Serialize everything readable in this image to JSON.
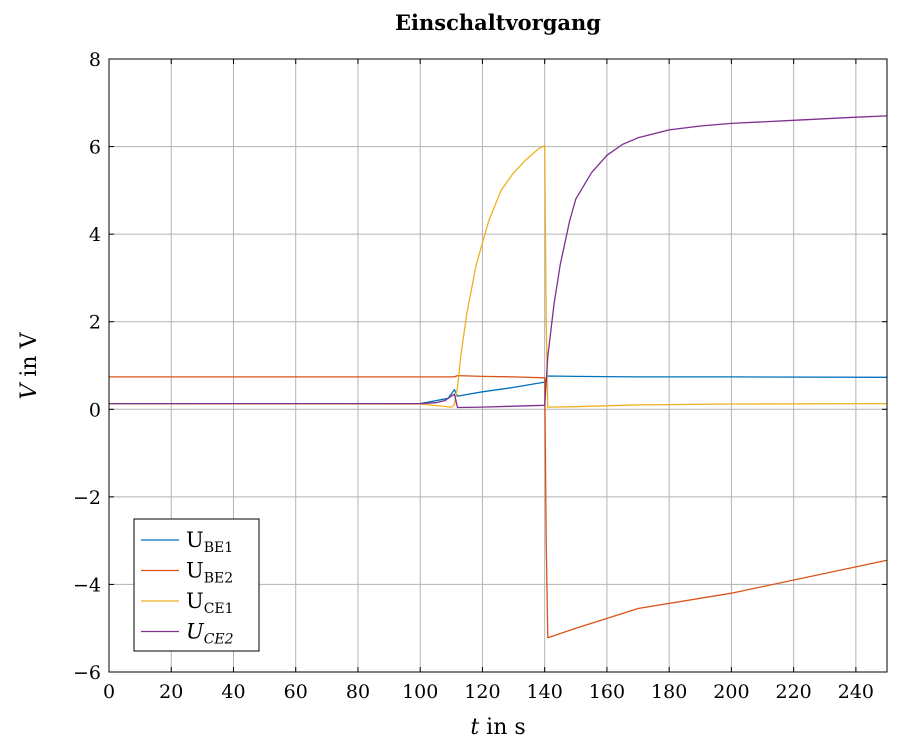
{
  "chart_data": {
    "type": "line",
    "title": "Einschaltvorgang",
    "xlabel": {
      "var": "t",
      "rest": " in s"
    },
    "ylabel": {
      "var": "V",
      "rest": " in V"
    },
    "xlim": [
      0,
      250
    ],
    "ylim": [
      -6,
      8
    ],
    "xticks": [
      0,
      20,
      40,
      60,
      80,
      100,
      120,
      140,
      160,
      180,
      200,
      220,
      240
    ],
    "yticks": [
      -6,
      -4,
      -2,
      0,
      2,
      4,
      6,
      8
    ],
    "ytick_labels": [
      "−6",
      "−4",
      "−2",
      "0",
      "2",
      "4",
      "6",
      "8"
    ],
    "grid": true,
    "legend_position": "bottom-left",
    "series": [
      {
        "name": "U",
        "sub": "BE1",
        "italic": false,
        "color": "#0072BD",
        "x": [
          0,
          100,
          109,
          111,
          112,
          120,
          130,
          140,
          141,
          150,
          170,
          200,
          250
        ],
        "y": [
          0.13,
          0.13,
          0.25,
          0.45,
          0.3,
          0.4,
          0.5,
          0.62,
          0.76,
          0.75,
          0.74,
          0.74,
          0.73
        ]
      },
      {
        "name": "U",
        "sub": "BE2",
        "italic": false,
        "color": "#D95319",
        "x": [
          0,
          100,
          111,
          112,
          120,
          130,
          140,
          140.5,
          141,
          150,
          170,
          200,
          250
        ],
        "y": [
          0.74,
          0.74,
          0.74,
          0.77,
          0.75,
          0.74,
          0.72,
          -3.0,
          -5.22,
          -5.0,
          -4.55,
          -4.2,
          -3.45
        ]
      },
      {
        "name": "U",
        "sub": "CE1",
        "italic": false,
        "color": "#EDB120",
        "x": [
          0,
          100,
          110,
          111,
          112,
          113,
          115,
          118,
          122,
          126,
          130,
          134,
          138,
          140,
          140.5,
          141,
          150,
          170,
          200,
          250
        ],
        "y": [
          0.13,
          0.12,
          0.05,
          0.1,
          0.5,
          1.2,
          2.2,
          3.3,
          4.3,
          5.0,
          5.4,
          5.7,
          5.95,
          6.02,
          2.0,
          0.05,
          0.06,
          0.1,
          0.12,
          0.13
        ]
      },
      {
        "name": "U",
        "sub": "CE2",
        "italic": true,
        "color": "#7E2F8E",
        "x": [
          0,
          100,
          105,
          108,
          110,
          111,
          112,
          120,
          130,
          140,
          141,
          143,
          145,
          148,
          150,
          155,
          160,
          165,
          170,
          180,
          190,
          200,
          220,
          240,
          250
        ],
        "y": [
          0.13,
          0.13,
          0.15,
          0.2,
          0.3,
          0.35,
          0.04,
          0.05,
          0.07,
          0.09,
          1.2,
          2.4,
          3.3,
          4.3,
          4.8,
          5.4,
          5.8,
          6.05,
          6.2,
          6.38,
          6.47,
          6.53,
          6.6,
          6.67,
          6.7
        ]
      }
    ]
  }
}
